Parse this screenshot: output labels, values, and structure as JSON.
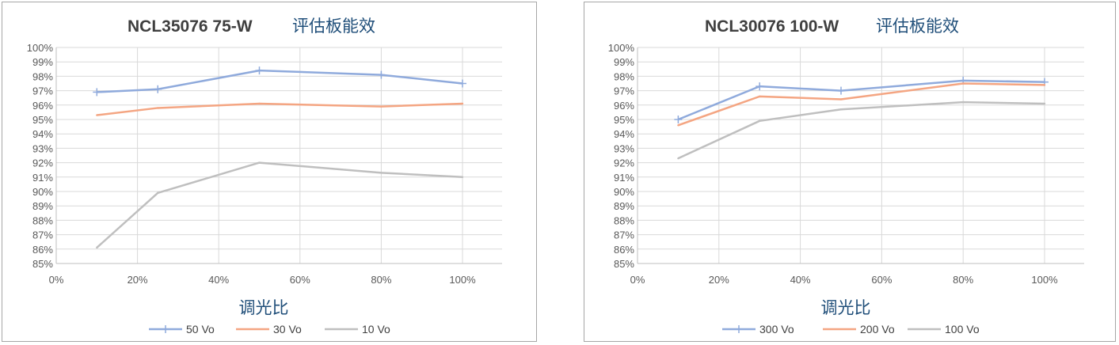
{
  "chart_data": [
    {
      "type": "line",
      "title": "NCL35076 75-W",
      "title_cn": "评估板能效",
      "xlabel": "调光比",
      "ylabel": "",
      "x_ticks": [
        "0%",
        "20%",
        "40%",
        "60%",
        "80%",
        "100%"
      ],
      "y_ticks": [
        "85%",
        "86%",
        "87%",
        "88%",
        "89%",
        "90%",
        "91%",
        "92%",
        "93%",
        "94%",
        "95%",
        "96%",
        "97%",
        "98%",
        "99%",
        "100%"
      ],
      "xlim": [
        0,
        100
      ],
      "ylim": [
        85,
        100
      ],
      "grid": true,
      "legend_position": "bottom",
      "series": [
        {
          "name": "50 Vo",
          "color": "#8faadc",
          "marker": "plus",
          "x": [
            10,
            25,
            50,
            80,
            100
          ],
          "y": [
            96.9,
            97.1,
            98.4,
            98.1,
            97.5
          ]
        },
        {
          "name": "30 Vo",
          "color": "#f4a582",
          "marker": "none",
          "x": [
            10,
            25,
            50,
            80,
            100
          ],
          "y": [
            95.3,
            95.8,
            96.1,
            95.9,
            96.1
          ]
        },
        {
          "name": "10 Vo",
          "color": "#bfbfbf",
          "marker": "none",
          "x": [
            10,
            25,
            50,
            80,
            100
          ],
          "y": [
            86.1,
            89.9,
            92.0,
            91.3,
            91.0
          ]
        }
      ]
    },
    {
      "type": "line",
      "title": "NCL30076 100-W",
      "title_cn": "评估板能效",
      "xlabel": "调光比",
      "ylabel": "",
      "x_ticks": [
        "0%",
        "20%",
        "40%",
        "60%",
        "80%",
        "100%"
      ],
      "y_ticks": [
        "85%",
        "86%",
        "87%",
        "88%",
        "89%",
        "90%",
        "91%",
        "92%",
        "93%",
        "94%",
        "95%",
        "96%",
        "97%",
        "98%",
        "99%",
        "100%"
      ],
      "xlim": [
        0,
        100
      ],
      "ylim": [
        85,
        100
      ],
      "grid": true,
      "legend_position": "bottom",
      "series": [
        {
          "name": "300 Vo",
          "color": "#8faadc",
          "marker": "plus",
          "x": [
            10,
            30,
            50,
            80,
            100
          ],
          "y": [
            95.0,
            97.3,
            97.0,
            97.7,
            97.6
          ]
        },
        {
          "name": "200 Vo",
          "color": "#f4a582",
          "marker": "none",
          "x": [
            10,
            30,
            50,
            80,
            100
          ],
          "y": [
            94.6,
            96.6,
            96.4,
            97.5,
            97.4
          ]
        },
        {
          "name": "100 Vo",
          "color": "#bfbfbf",
          "marker": "none",
          "x": [
            10,
            30,
            50,
            80,
            100
          ],
          "y": [
            92.3,
            94.9,
            95.7,
            96.2,
            96.1
          ]
        }
      ]
    }
  ]
}
